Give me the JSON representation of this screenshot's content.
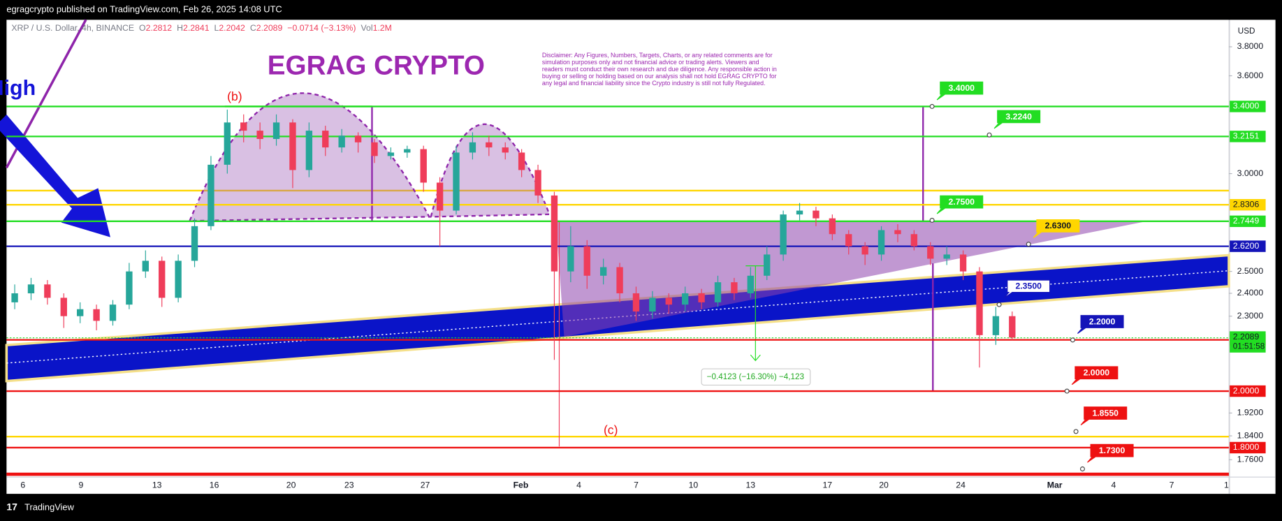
{
  "header": "egragcrypto published on TradingView.com, Feb 26, 2025 14:08 UTC",
  "legend": {
    "symbol": "XRP / U.S. Dollar, 4h, BINANCE",
    "items": [
      {
        "k": "O",
        "v": "2.2812"
      },
      {
        "k": "H",
        "v": "2.2841"
      },
      {
        "k": "L",
        "v": "2.2042"
      },
      {
        "k": "C",
        "v": "2.2089"
      },
      {
        "k": "",
        "v": "−0.0714 (−3.13%)"
      },
      {
        "k": "Vol",
        "v": "1.2M"
      }
    ]
  },
  "title": "EGRAG CRYPTO",
  "disclaimer": [
    "Disclaimer: Any Figures, Numbers, Targets, Charts, or any related comments are for",
    "simulation purposes only and not financial advice or trading alerts. Viewers and",
    "readers must conduct their own research and due diligence. Any responsible action in",
    "buying or selling or holding based on our analysis shall not hold EGRAG CRYPTO for",
    "any legal and financial liability since the Crypto industry is still not fully Regulated."
  ],
  "annotations": {
    "b": "(b)",
    "c": "(c)",
    "high": "High",
    "measure": "−0.4123 (−16.30%) −4,123"
  },
  "footer": "TradingView",
  "chart": {
    "type": "candlestick",
    "log_scale": true,
    "currency": "USD",
    "ylim": [
      1.713,
      3.996
    ],
    "yticks": [
      {
        "value": 3.8,
        "label": "3.8000"
      },
      {
        "value": 3.6,
        "label": "3.6000"
      },
      {
        "value": 3.0,
        "label": "3.0000"
      },
      {
        "value": 2.5,
        "label": "2.5000"
      },
      {
        "value": 2.4,
        "label": "2.4000"
      },
      {
        "value": 2.3,
        "label": "2.3000"
      },
      {
        "value": 1.92,
        "label": "1.9200"
      },
      {
        "value": 1.84,
        "label": "1.8400"
      },
      {
        "value": 1.76,
        "label": "1.7600"
      }
    ],
    "x_labels": [
      "6",
      "9",
      "13",
      "16",
      "20",
      "23",
      "27",
      "Feb",
      "4",
      "7",
      "10",
      "13",
      "17",
      "20",
      "24",
      "Mar",
      "4",
      "7",
      "1"
    ],
    "up_color": "#26a69a",
    "down_color": "#ef3d5a",
    "open": [
      2.36,
      2.4,
      2.44,
      2.38,
      2.3,
      2.33,
      2.28,
      2.35,
      2.5,
      2.55,
      2.38,
      2.55,
      2.72,
      3.05,
      3.3,
      3.25,
      3.2,
      3.3,
      3.02,
      3.25,
      3.15,
      3.22,
      3.18,
      3.1,
      3.12,
      3.14,
      2.95,
      2.8,
      3.12,
      3.18,
      3.15,
      3.12,
      3.02,
      2.88,
      2.5,
      2.62,
      2.48,
      2.52,
      2.4,
      2.32,
      2.38,
      2.35,
      2.4,
      2.36,
      2.45,
      2.4,
      2.48,
      2.58,
      2.78,
      2.8,
      2.76,
      2.68,
      2.62,
      2.58,
      2.7,
      2.68,
      2.62,
      2.56,
      2.58,
      2.5,
      2.22,
      2.3
    ],
    "high": [
      2.44,
      2.47,
      2.46,
      2.4,
      2.36,
      2.35,
      2.37,
      2.54,
      2.6,
      2.57,
      2.58,
      2.76,
      3.1,
      3.38,
      3.35,
      3.3,
      3.35,
      3.32,
      3.3,
      3.28,
      3.26,
      3.24,
      3.2,
      3.15,
      3.16,
      3.16,
      2.98,
      3.16,
      3.24,
      3.22,
      3.18,
      3.14,
      3.05,
      2.9,
      2.72,
      2.65,
      2.56,
      2.54,
      2.43,
      2.41,
      2.4,
      2.43,
      2.42,
      2.48,
      2.47,
      2.52,
      2.62,
      2.8,
      2.84,
      2.82,
      2.78,
      2.7,
      2.64,
      2.72,
      2.73,
      2.7,
      2.64,
      2.62,
      2.6,
      2.52,
      2.34,
      2.32
    ],
    "low": [
      2.33,
      2.37,
      2.35,
      2.25,
      2.27,
      2.24,
      2.26,
      2.33,
      2.47,
      2.34,
      2.36,
      2.52,
      2.7,
      3.0,
      3.18,
      3.14,
      3.16,
      2.92,
      2.98,
      3.1,
      3.12,
      3.12,
      3.06,
      3.08,
      3.09,
      2.9,
      2.62,
      2.78,
      3.08,
      3.1,
      3.08,
      2.98,
      2.84,
      2.12,
      2.45,
      2.42,
      2.44,
      2.36,
      2.28,
      2.29,
      2.31,
      2.32,
      2.33,
      2.34,
      2.37,
      2.38,
      2.46,
      2.55,
      2.75,
      2.72,
      2.65,
      2.58,
      2.53,
      2.55,
      2.64,
      2.6,
      2.53,
      2.53,
      2.46,
      2.09,
      2.18,
      2.2
    ],
    "close": [
      2.4,
      2.44,
      2.38,
      2.3,
      2.33,
      2.28,
      2.35,
      2.5,
      2.55,
      2.38,
      2.55,
      2.72,
      3.05,
      3.3,
      3.25,
      3.2,
      3.3,
      3.02,
      3.25,
      3.15,
      3.22,
      3.18,
      3.1,
      3.12,
      3.14,
      2.95,
      2.8,
      3.12,
      3.18,
      3.15,
      3.12,
      3.02,
      2.88,
      2.5,
      2.62,
      2.48,
      2.52,
      2.4,
      2.32,
      2.38,
      2.35,
      2.4,
      2.36,
      2.45,
      2.4,
      2.48,
      2.58,
      2.78,
      2.8,
      2.76,
      2.68,
      2.62,
      2.58,
      2.7,
      2.68,
      2.62,
      2.56,
      2.58,
      2.5,
      2.22,
      2.3,
      2.21
    ],
    "levels": [
      {
        "value": 3.4,
        "label": "3.4000",
        "color": "#22dd22"
      },
      {
        "value": 3.2151,
        "label": "3.2151",
        "color": "#22dd22"
      },
      {
        "value": 2.8306,
        "label": "2.8306",
        "color": "#ffd600"
      },
      {
        "value": 2.7449,
        "label": "2.7449",
        "color": "#22dd22"
      },
      {
        "value": 2.62,
        "label": "2.6200",
        "color": "#1414b8"
      },
      {
        "value": 2.2006,
        "label": "2.2006",
        "color": "#ee1111"
      },
      {
        "value": 2.0,
        "label": "2.0000",
        "color": "#ee1111"
      },
      {
        "value": 1.8,
        "label": "1.8000",
        "color": "#ee1111"
      }
    ],
    "current": {
      "value": 2.2089,
      "label": "2.2089",
      "countdown": "01:51:58",
      "color": "#22dd22"
    },
    "callouts": [
      {
        "value": 3.4,
        "label": "3.4000",
        "color": "#22dd22"
      },
      {
        "value": 3.224,
        "label": "3.2240",
        "color": "#22dd22"
      },
      {
        "value": 2.75,
        "label": "2.7500",
        "color": "#22dd22"
      },
      {
        "value": 2.63,
        "label": "2.6300",
        "color": "#ffd600"
      },
      {
        "value": 2.35,
        "label": "2.3500",
        "color": "#ffffff"
      },
      {
        "value": 2.2,
        "label": "2.2000",
        "color": "#1414b8"
      },
      {
        "value": 2.0,
        "label": "2.0000",
        "color": "#ee1111"
      },
      {
        "value": 1.855,
        "label": "1.8550",
        "color": "#ee1111"
      },
      {
        "value": 1.73,
        "label": "1.7300",
        "color": "#ee1111"
      }
    ]
  }
}
